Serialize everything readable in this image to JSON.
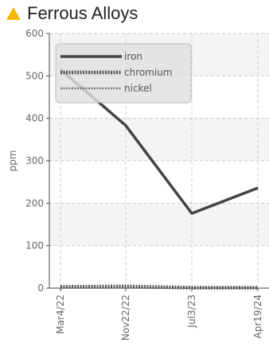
{
  "header": {
    "icon": "warning-triangle-icon",
    "icon_color": "#f5b800",
    "title": "Ferrous Alloys"
  },
  "chart_data": {
    "type": "line",
    "title": "Ferrous Alloys",
    "xlabel": "",
    "ylabel": "ppm",
    "ylim": [
      0,
      600
    ],
    "yticks": [
      0,
      100,
      200,
      300,
      400,
      500,
      600
    ],
    "categories": [
      "Mar4/22",
      "Nov22/22",
      "Jul3/23",
      "Apr19/24"
    ],
    "series": [
      {
        "name": "iron",
        "values": [
          515,
          383,
          176,
          236
        ],
        "color": "#444444",
        "style": "solid"
      },
      {
        "name": "chromium",
        "values": [
          3,
          4,
          1,
          1
        ],
        "color": "#555555",
        "style": "dotted-thick"
      },
      {
        "name": "nickel",
        "values": [
          1,
          1,
          0,
          0
        ],
        "color": "#777777",
        "style": "dotted-thin"
      }
    ],
    "grid": true,
    "legend_position": "top-left"
  }
}
